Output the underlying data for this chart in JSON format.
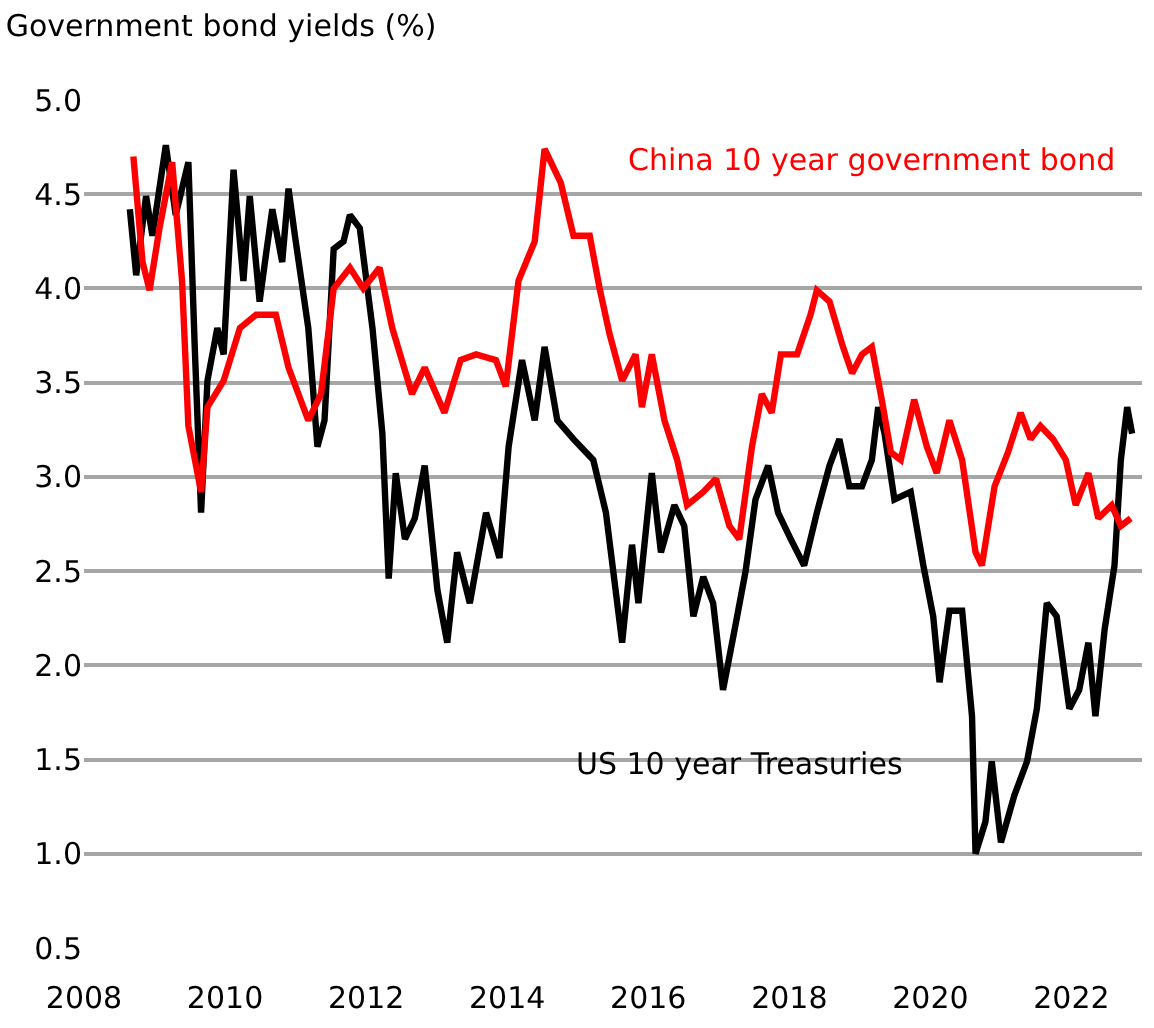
{
  "chart_data": {
    "type": "line",
    "title": "Government bond yields (%)",
    "xlim": [
      2008,
      2023
    ],
    "xticks": [
      2008,
      2010,
      2012,
      2014,
      2016,
      2018,
      2020,
      2022
    ],
    "ylim": [
      0.5,
      5.0
    ],
    "yticks": [
      {
        "value": 0.5,
        "label": "0.5"
      },
      {
        "value": 1,
        "label": "1.0"
      },
      {
        "value": 1.5,
        "label": "1.5"
      },
      {
        "value": 2,
        "label": "2.0"
      },
      {
        "value": 2.5,
        "label": "2.5"
      },
      {
        "value": 3,
        "label": "3.0"
      },
      {
        "value": 3.5,
        "label": "3.5"
      },
      {
        "value": 4,
        "label": "4.0"
      },
      {
        "value": 4.5,
        "label": "4.5"
      },
      {
        "value": 5,
        "label": "5.0"
      }
    ],
    "grid": "y",
    "legend": false,
    "marker": "none",
    "line_style": "solid",
    "series": [
      {
        "name": "US 10 year Treasuries",
        "color": "#000000",
        "x": [
          2008.65,
          2008.74,
          2008.88,
          2008.97,
          2009.16,
          2009.3,
          2009.48,
          2009.57,
          2009.66,
          2009.75,
          2009.89,
          2009.98,
          2010.12,
          2010.26,
          2010.35,
          2010.49,
          2010.58,
          2010.67,
          2010.81,
          2010.9,
          2010.99,
          2011.18,
          2011.31,
          2011.41,
          2011.54,
          2011.68,
          2011.77,
          2011.91,
          2012.09,
          2012.23,
          2012.32,
          2012.42,
          2012.55,
          2012.69,
          2012.83,
          2013.01,
          2013.15,
          2013.29,
          2013.47,
          2013.7,
          2013.89,
          2014.02,
          2014.21,
          2014.39,
          2014.53,
          2014.71,
          2014.94,
          2015.22,
          2015.4,
          2015.63,
          2015.77,
          2015.86,
          2016.05,
          2016.18,
          2016.37,
          2016.51,
          2016.64,
          2016.78,
          2016.92,
          2017.06,
          2017.24,
          2017.38,
          2017.52,
          2017.7,
          2017.84,
          2018.02,
          2018.21,
          2018.39,
          2018.57,
          2018.71,
          2018.85,
          2019.03,
          2019.17,
          2019.26,
          2019.35,
          2019.49,
          2019.72,
          2019.9,
          2020.04,
          2020.13,
          2020.27,
          2020.45,
          2020.59,
          2020.64,
          2020.78,
          2020.87,
          2021.0,
          2021.19,
          2021.37,
          2021.51,
          2021.65,
          2021.79,
          2021.97,
          2022.11,
          2022.24,
          2022.34,
          2022.47,
          2022.61,
          2022.7,
          2022.79,
          2022.86
        ],
        "values": [
          4.42,
          4.07,
          4.49,
          4.28,
          4.76,
          4.39,
          4.67,
          3.69,
          2.81,
          3.51,
          3.79,
          3.65,
          4.63,
          4.04,
          4.49,
          3.93,
          4.18,
          4.42,
          4.14,
          4.53,
          4.28,
          3.79,
          3.16,
          3.3,
          4.21,
          4.25,
          4.39,
          4.32,
          3.79,
          3.23,
          2.46,
          3.02,
          2.67,
          2.78,
          3.06,
          2.4,
          2.12,
          2.6,
          2.33,
          2.81,
          2.57,
          3.16,
          3.62,
          3.3,
          3.69,
          3.3,
          3.2,
          3.09,
          2.81,
          2.12,
          2.64,
          2.33,
          3.02,
          2.6,
          2.85,
          2.74,
          2.26,
          2.47,
          2.33,
          1.87,
          2.22,
          2.5,
          2.88,
          3.06,
          2.81,
          2.67,
          2.53,
          2.81,
          3.06,
          3.2,
          2.95,
          2.95,
          3.09,
          3.37,
          3.23,
          2.88,
          2.92,
          2.53,
          2.26,
          1.91,
          2.29,
          2.29,
          1.73,
          1.0,
          1.17,
          1.49,
          1.06,
          1.31,
          1.49,
          1.77,
          2.33,
          2.26,
          1.77,
          1.87,
          2.12,
          1.73,
          2.19,
          2.53,
          3.09,
          3.37,
          3.23
        ]
      },
      {
        "name": "China 10 year government bond",
        "color": "#ff0000",
        "x": [
          2008.7,
          2008.83,
          2008.93,
          2009.07,
          2009.25,
          2009.39,
          2009.48,
          2009.66,
          2009.75,
          2009.98,
          2010.21,
          2010.44,
          2010.72,
          2010.9,
          2011.18,
          2011.36,
          2011.54,
          2011.77,
          2011.96,
          2012.19,
          2012.37,
          2012.65,
          2012.83,
          2013.11,
          2013.34,
          2013.56,
          2013.84,
          2013.98,
          2014.16,
          2014.39,
          2014.53,
          2014.76,
          2014.94,
          2015.17,
          2015.31,
          2015.45,
          2015.63,
          2015.82,
          2015.91,
          2016.05,
          2016.23,
          2016.41,
          2016.55,
          2016.78,
          2016.96,
          2017.15,
          2017.29,
          2017.47,
          2017.61,
          2017.75,
          2017.88,
          2018.11,
          2018.3,
          2018.39,
          2018.57,
          2018.76,
          2018.89,
          2019.03,
          2019.17,
          2019.31,
          2019.44,
          2019.58,
          2019.77,
          2019.95,
          2020.09,
          2020.27,
          2020.45,
          2020.64,
          2020.73,
          2020.91,
          2021.1,
          2021.28,
          2021.42,
          2021.56,
          2021.74,
          2021.92,
          2022.06,
          2022.24,
          2022.38,
          2022.57,
          2022.7,
          2022.84
        ],
        "values": [
          4.7,
          4.14,
          3.99,
          4.32,
          4.67,
          4.04,
          3.27,
          2.92,
          3.37,
          3.51,
          3.79,
          3.86,
          3.86,
          3.58,
          3.3,
          3.44,
          4.0,
          4.11,
          4.0,
          4.11,
          3.79,
          3.44,
          3.58,
          3.34,
          3.62,
          3.65,
          3.62,
          3.48,
          4.04,
          4.25,
          4.74,
          4.56,
          4.28,
          4.28,
          4.0,
          3.76,
          3.51,
          3.65,
          3.37,
          3.65,
          3.3,
          3.09,
          2.85,
          2.92,
          2.99,
          2.74,
          2.67,
          3.16,
          3.44,
          3.34,
          3.65,
          3.65,
          3.86,
          3.99,
          3.93,
          3.69,
          3.55,
          3.65,
          3.69,
          3.41,
          3.13,
          3.09,
          3.41,
          3.16,
          3.02,
          3.3,
          3.09,
          2.6,
          2.53,
          2.95,
          3.13,
          3.34,
          3.2,
          3.27,
          3.2,
          3.09,
          2.85,
          3.02,
          2.78,
          2.85,
          2.74,
          2.78
        ]
      }
    ]
  }
}
